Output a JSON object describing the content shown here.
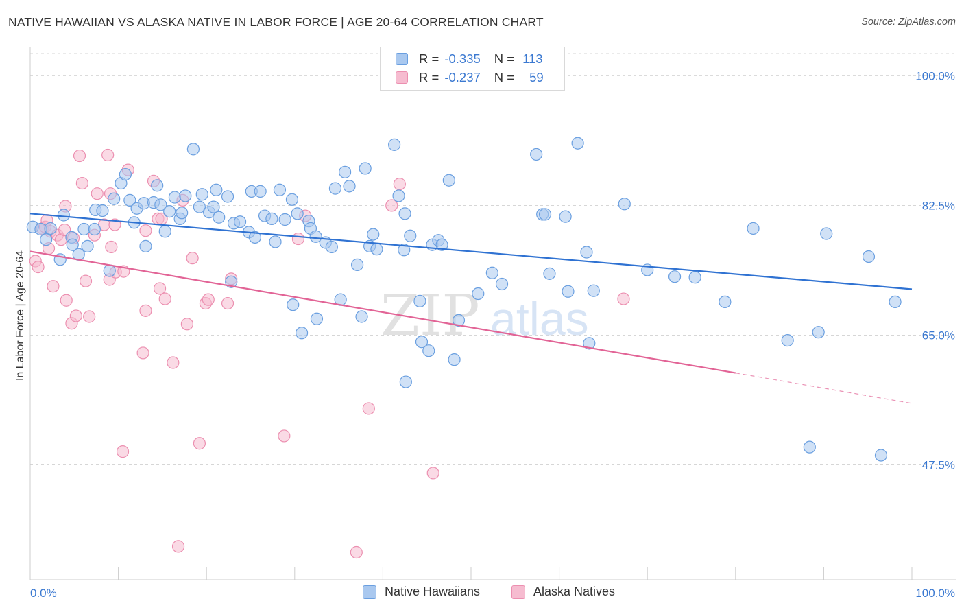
{
  "header": {
    "title": "NATIVE HAWAIIAN VS ALASKA NATIVE IN LABOR FORCE | AGE 20-64 CORRELATION CHART",
    "source": "Source: ZipAtlas.com"
  },
  "legend": {
    "rows": [
      {
        "r_label": "R =",
        "r_value": "-0.335",
        "n_label": "N =",
        "n_value": "113"
      },
      {
        "r_label": "R =",
        "r_value": "-0.237",
        "n_label": "N =",
        "n_value": "59"
      }
    ]
  },
  "watermark": {
    "part1": "ZIP",
    "part2": "atlas"
  },
  "colors": {
    "blue_fill": "#a9c8ef",
    "blue_stroke": "#6a9fe0",
    "blue_line": "#2f72d2",
    "pink_fill": "#f6bcd0",
    "pink_stroke": "#ec8fb0",
    "pink_line": "#e26496",
    "axis_text": "#3b79d1",
    "grid": "#d6d6d6"
  },
  "chart_data": {
    "type": "scatter",
    "title": "NATIVE HAWAIIAN VS ALASKA NATIVE IN LABOR FORCE | AGE 20-64 CORRELATION CHART",
    "xlabel": "",
    "ylabel": "In Labor Force | Age 20-64",
    "xlim": [
      0,
      100
    ],
    "ylim": [
      32,
      103
    ],
    "x_tick_labels": [
      "0.0%",
      "100.0%"
    ],
    "y_ticks": [
      47.5,
      65.0,
      82.5,
      100.0
    ],
    "y_tick_labels": [
      "47.5%",
      "65.0%",
      "82.5%",
      "100.0%"
    ],
    "grid": true,
    "series": [
      {
        "name": "Native Hawaiians",
        "color": "blue",
        "r": -0.335,
        "n": 113,
        "trend": {
          "x0": 0,
          "y0": 81.4,
          "x1": 100,
          "y1": 71.2
        },
        "points": [
          [
            0.3,
            79.6
          ],
          [
            1.2,
            79.3
          ],
          [
            1.8,
            77.9
          ],
          [
            2.3,
            79.4
          ],
          [
            3.4,
            75.2
          ],
          [
            3.8,
            81.2
          ],
          [
            4.7,
            78.2
          ],
          [
            4.8,
            77.2
          ],
          [
            5.5,
            75.9
          ],
          [
            6.1,
            79.3
          ],
          [
            6.5,
            77.0
          ],
          [
            7.3,
            79.3
          ],
          [
            7.4,
            81.9
          ],
          [
            8.2,
            81.8
          ],
          [
            9.0,
            73.7
          ],
          [
            9.5,
            83.4
          ],
          [
            10.3,
            85.5
          ],
          [
            10.8,
            86.7
          ],
          [
            11.3,
            83.2
          ],
          [
            11.8,
            80.2
          ],
          [
            12.1,
            82.1
          ],
          [
            12.9,
            82.8
          ],
          [
            13.1,
            77.0
          ],
          [
            14.0,
            82.9
          ],
          [
            14.4,
            85.2
          ],
          [
            14.8,
            82.6
          ],
          [
            15.3,
            79.0
          ],
          [
            15.8,
            81.7
          ],
          [
            16.4,
            83.6
          ],
          [
            17.0,
            80.7
          ],
          [
            17.2,
            81.5
          ],
          [
            17.6,
            83.8
          ],
          [
            18.5,
            90.1
          ],
          [
            19.2,
            82.3
          ],
          [
            19.5,
            84.0
          ],
          [
            20.3,
            81.6
          ],
          [
            20.8,
            82.3
          ],
          [
            21.1,
            84.6
          ],
          [
            21.4,
            80.9
          ],
          [
            22.4,
            83.7
          ],
          [
            22.8,
            72.2
          ],
          [
            23.1,
            80.1
          ],
          [
            23.8,
            80.3
          ],
          [
            24.8,
            78.9
          ],
          [
            25.1,
            84.4
          ],
          [
            25.5,
            78.2
          ],
          [
            26.1,
            84.4
          ],
          [
            26.6,
            81.1
          ],
          [
            27.4,
            80.7
          ],
          [
            27.8,
            77.6
          ],
          [
            28.3,
            84.6
          ],
          [
            28.9,
            80.6
          ],
          [
            29.7,
            83.3
          ],
          [
            29.8,
            69.1
          ],
          [
            30.3,
            81.4
          ],
          [
            30.8,
            65.3
          ],
          [
            31.6,
            80.4
          ],
          [
            31.8,
            79.4
          ],
          [
            32.4,
            78.3
          ],
          [
            32.5,
            67.2
          ],
          [
            33.5,
            77.5
          ],
          [
            34.2,
            76.9
          ],
          [
            34.6,
            84.8
          ],
          [
            35.2,
            69.8
          ],
          [
            35.7,
            87.0
          ],
          [
            36.2,
            85.1
          ],
          [
            37.1,
            74.5
          ],
          [
            37.6,
            67.5
          ],
          [
            38.0,
            87.5
          ],
          [
            38.5,
            77.0
          ],
          [
            38.9,
            78.6
          ],
          [
            39.3,
            76.6
          ],
          [
            41.3,
            90.7
          ],
          [
            41.8,
            83.8
          ],
          [
            42.4,
            76.5
          ],
          [
            42.5,
            81.4
          ],
          [
            42.6,
            58.7
          ],
          [
            43.1,
            78.4
          ],
          [
            44.2,
            69.6
          ],
          [
            44.4,
            64.1
          ],
          [
            45.2,
            62.9
          ],
          [
            45.6,
            77.2
          ],
          [
            46.3,
            77.8
          ],
          [
            46.7,
            77.2
          ],
          [
            47.5,
            85.9
          ],
          [
            48.1,
            61.7
          ],
          [
            48.6,
            67.0
          ],
          [
            50.8,
            70.6
          ],
          [
            52.4,
            73.4
          ],
          [
            53.5,
            71.9
          ],
          [
            57.4,
            89.4
          ],
          [
            58.1,
            81.3
          ],
          [
            58.4,
            81.3
          ],
          [
            58.9,
            73.3
          ],
          [
            60.7,
            81.0
          ],
          [
            61.0,
            70.9
          ],
          [
            62.1,
            90.9
          ],
          [
            63.1,
            76.2
          ],
          [
            63.4,
            63.9
          ],
          [
            63.9,
            71.0
          ],
          [
            67.4,
            82.7
          ],
          [
            70.0,
            73.8
          ],
          [
            73.1,
            72.9
          ],
          [
            75.4,
            72.8
          ],
          [
            78.8,
            69.5
          ],
          [
            98.1,
            69.5
          ],
          [
            82.0,
            79.4
          ],
          [
            85.9,
            64.3
          ],
          [
            88.4,
            49.9
          ],
          [
            89.4,
            65.4
          ],
          [
            90.3,
            78.7
          ],
          [
            95.1,
            75.6
          ],
          [
            96.5,
            48.8
          ]
        ]
      },
      {
        "name": "Alaska Natives",
        "color": "pink",
        "r": -0.237,
        "n": 59,
        "trend": {
          "x0": 0,
          "y0": 76.3,
          "x1": 100,
          "y1": 55.8,
          "solid_until_x": 80
        },
        "points": [
          [
            0.6,
            75.0
          ],
          [
            0.9,
            74.2
          ],
          [
            1.4,
            79.4
          ],
          [
            1.7,
            79.6
          ],
          [
            1.9,
            80.5
          ],
          [
            2.1,
            76.7
          ],
          [
            2.3,
            79.0
          ],
          [
            2.6,
            71.6
          ],
          [
            3.1,
            78.5
          ],
          [
            3.5,
            77.9
          ],
          [
            3.9,
            79.2
          ],
          [
            4.0,
            82.4
          ],
          [
            4.1,
            69.7
          ],
          [
            4.7,
            66.6
          ],
          [
            4.9,
            78.1
          ],
          [
            5.2,
            67.6
          ],
          [
            5.6,
            89.2
          ],
          [
            5.9,
            85.5
          ],
          [
            6.3,
            72.3
          ],
          [
            6.7,
            67.5
          ],
          [
            7.3,
            78.5
          ],
          [
            7.6,
            84.1
          ],
          [
            8.4,
            79.9
          ],
          [
            8.8,
            89.3
          ],
          [
            9.0,
            72.5
          ],
          [
            9.1,
            84.1
          ],
          [
            9.2,
            76.9
          ],
          [
            9.6,
            79.9
          ],
          [
            9.7,
            73.5
          ],
          [
            10.5,
            49.3
          ],
          [
            10.6,
            73.6
          ],
          [
            11.1,
            87.3
          ],
          [
            12.8,
            62.6
          ],
          [
            13.1,
            79.1
          ],
          [
            13.1,
            68.3
          ],
          [
            14.0,
            85.8
          ],
          [
            14.5,
            80.7
          ],
          [
            14.7,
            71.3
          ],
          [
            14.9,
            80.7
          ],
          [
            15.3,
            69.9
          ],
          [
            16.2,
            61.3
          ],
          [
            16.8,
            36.5
          ],
          [
            17.3,
            83.2
          ],
          [
            17.8,
            66.5
          ],
          [
            18.4,
            75.4
          ],
          [
            19.2,
            50.4
          ],
          [
            19.9,
            69.3
          ],
          [
            20.2,
            69.8
          ],
          [
            22.4,
            69.3
          ],
          [
            22.8,
            72.6
          ],
          [
            28.8,
            51.4
          ],
          [
            30.4,
            78.0
          ],
          [
            31.2,
            81.1
          ],
          [
            37.0,
            35.7
          ],
          [
            38.4,
            55.1
          ],
          [
            41.0,
            82.5
          ],
          [
            41.9,
            85.4
          ],
          [
            45.7,
            46.4
          ],
          [
            67.3,
            69.9
          ]
        ]
      }
    ]
  }
}
